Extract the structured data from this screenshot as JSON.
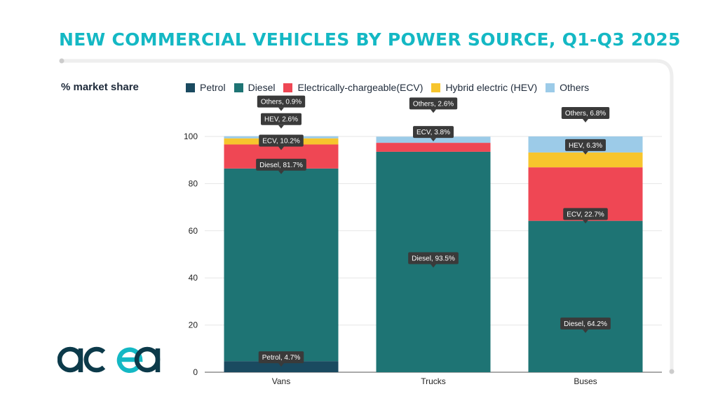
{
  "title": "NEW COMMERCIAL VEHICLES BY POWER SOURCE, Q1-Q3 2025",
  "ylabel": "% market share",
  "logo_text": "acea",
  "colors": {
    "title": "#14b8c4",
    "frame": "#eeeeee",
    "callout": "#3a3a3a"
  },
  "chart_data": {
    "type": "bar",
    "stacked": true,
    "ylabel": "% market share",
    "ylim": [
      0,
      100
    ],
    "yticks": [
      "0",
      "20",
      "40",
      "60",
      "80",
      "100"
    ],
    "categories": [
      "Vans",
      "Trucks",
      "Buses"
    ],
    "legend_position": "top",
    "series": [
      {
        "name": "Petrol",
        "color": "#1a4a60",
        "values": [
          4.7,
          0,
          0
        ]
      },
      {
        "name": "Diesel",
        "color": "#1e7474",
        "values": [
          81.7,
          93.5,
          64.2
        ]
      },
      {
        "name": "Electrically-chargeable(ECV)",
        "color": "#ef4754",
        "values": [
          10.2,
          3.8,
          22.7
        ]
      },
      {
        "name": "Hybrid electric (HEV)",
        "color": "#f7c52d",
        "values": [
          2.6,
          0,
          6.3
        ]
      },
      {
        "name": "Others",
        "color": "#9ccbe8",
        "values": [
          0.9,
          2.6,
          6.8
        ]
      }
    ],
    "data_labels": [
      [
        "Petrol, 4.7%",
        "Diesel, 81.7%",
        "ECV, 10.2%",
        "HEV, 2.6%",
        "Others, 0.9%"
      ],
      [
        "Diesel, 93.5%",
        "ECV, 3.8%",
        "Others, 2.6%"
      ],
      [
        "Diesel, 64.2%",
        "ECV, 22.7%",
        "HEV, 6.3%",
        "Others, 6.8%"
      ]
    ]
  }
}
